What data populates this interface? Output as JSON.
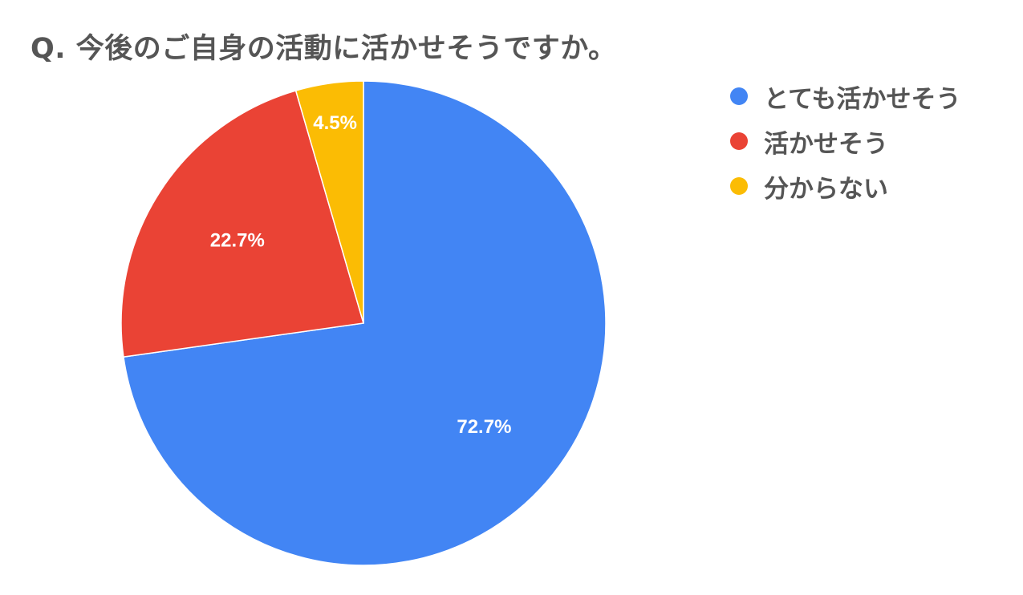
{
  "chart_data": {
    "type": "pie",
    "title": "Q. 今後のご自身の活動に活かせそうですか。",
    "categories": [
      "とても活かせそう",
      "活かせそう",
      "分からない"
    ],
    "values": [
      72.7,
      22.7,
      4.5
    ],
    "value_labels": [
      "72.7%",
      "22.7%",
      "4.5%"
    ],
    "colors": [
      "#4285f4",
      "#ea4335",
      "#fbbc04"
    ],
    "start_angle": "12 o'clock",
    "direction": "clockwise",
    "legend_position": "right"
  }
}
